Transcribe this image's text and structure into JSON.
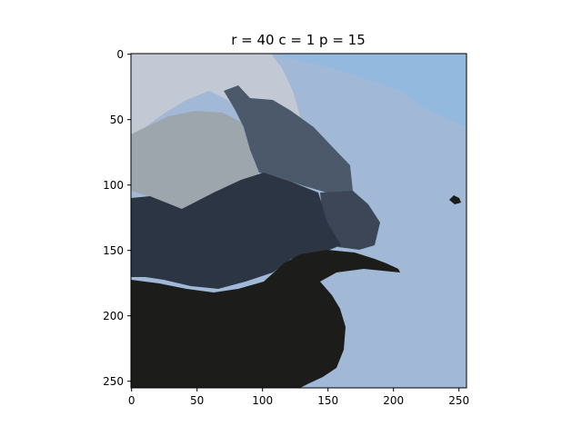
{
  "chart_data": {
    "type": "heatmap",
    "title": "r = 40   c = 1   p = 15",
    "xlabel": "",
    "ylabel": "",
    "xlim": [
      0,
      255
    ],
    "ylim": [
      255,
      0
    ],
    "grid": false,
    "x_ticks": [
      0,
      50,
      100,
      150,
      200,
      250
    ],
    "y_ticks": [
      0,
      50,
      100,
      150,
      200,
      250
    ],
    "image_description": "segmented image of a coastal scene with clustered color regions",
    "regions": [
      {
        "name": "sky-light",
        "color": "#c3c9d4"
      },
      {
        "name": "sky-blue",
        "color": "#93b9de"
      },
      {
        "name": "sea",
        "color": "#a1b9d6"
      },
      {
        "name": "mid-gray",
        "color": "#9ea6ad"
      },
      {
        "name": "slate",
        "color": "#4b596b"
      },
      {
        "name": "slate-dark",
        "color": "#3c4656"
      },
      {
        "name": "navy-dark",
        "color": "#2b3543"
      },
      {
        "name": "black",
        "color": "#1c1c1a"
      }
    ]
  }
}
